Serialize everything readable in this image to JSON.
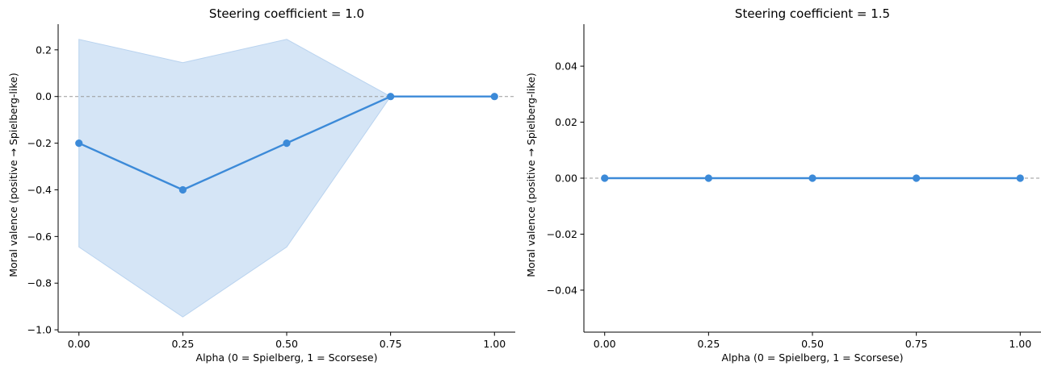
{
  "chart_data": [
    {
      "type": "line",
      "title": "Steering coefficient = 1.0",
      "xlabel": "Alpha  (0 = Spielberg, 1 = Scorsese)",
      "ylabel": "Moral valence  (positive → Spielberg-like)",
      "x": [
        0.0,
        0.25,
        0.5,
        0.75,
        1.0
      ],
      "x_tick_labels": [
        "0.00",
        "0.25",
        "0.50",
        "0.75",
        "1.00"
      ],
      "xlim": [
        -0.05,
        1.05
      ],
      "y_ticks": [
        0.2,
        0.0,
        -0.2,
        -0.4,
        -0.6,
        -0.8,
        -1.0
      ],
      "y_tick_labels": [
        "0.2",
        "0.0",
        "−0.2",
        "−0.4",
        "−0.6",
        "−0.8",
        "−1.0"
      ],
      "ylim": [
        -1.01,
        0.31
      ],
      "series": [
        {
          "values": [
            -0.2,
            -0.4,
            -0.2,
            0.0,
            0.0
          ],
          "band_upper": [
            0.245,
            0.145,
            0.245,
            0.0,
            0.0
          ],
          "band_lower": [
            -0.645,
            -0.945,
            -0.645,
            0.0,
            0.0
          ]
        }
      ],
      "reference_line": 0.0,
      "grid": false,
      "colors": {
        "line": "#3c8ad8",
        "band": "#d5e5f6",
        "reference": "#999999"
      }
    },
    {
      "type": "line",
      "title": "Steering coefficient = 1.5",
      "xlabel": "Alpha  (0 = Spielberg, 1 = Scorsese)",
      "ylabel": "Moral valence  (positive → Spielberg-like)",
      "x": [
        0.0,
        0.25,
        0.5,
        0.75,
        1.0
      ],
      "x_tick_labels": [
        "0.00",
        "0.25",
        "0.50",
        "0.75",
        "1.00"
      ],
      "xlim": [
        -0.05,
        1.05
      ],
      "y_ticks": [
        0.04,
        0.02,
        0.0,
        -0.02,
        -0.04
      ],
      "y_tick_labels": [
        "0.04",
        "0.02",
        "0.00",
        "−0.02",
        "−0.04"
      ],
      "ylim": [
        -0.055,
        0.055
      ],
      "series": [
        {
          "values": [
            0.0,
            0.0,
            0.0,
            0.0,
            0.0
          ],
          "band_upper": [
            0.0,
            0.0,
            0.0,
            0.0,
            0.0
          ],
          "band_lower": [
            0.0,
            0.0,
            0.0,
            0.0,
            0.0
          ]
        }
      ],
      "reference_line": 0.0,
      "grid": false,
      "colors": {
        "line": "#3c8ad8",
        "band": "#d5e5f6",
        "reference": "#999999"
      }
    }
  ]
}
